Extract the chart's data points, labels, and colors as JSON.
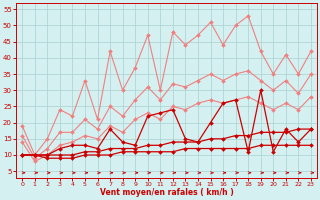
{
  "x": [
    0,
    1,
    2,
    3,
    4,
    5,
    6,
    7,
    8,
    9,
    10,
    11,
    12,
    13,
    14,
    15,
    16,
    17,
    18,
    19,
    20,
    21,
    22,
    23
  ],
  "lines": [
    {
      "label": "light_peak",
      "color": "#f08080",
      "lw": 0.8,
      "marker": "D",
      "ms": 2.0,
      "y": [
        19,
        10,
        15,
        24,
        22,
        33,
        21,
        42,
        30,
        37,
        47,
        30,
        48,
        44,
        47,
        51,
        44,
        50,
        53,
        42,
        35,
        41,
        35,
        42
      ]
    },
    {
      "label": "light_trend1",
      "color": "#f08080",
      "lw": 0.8,
      "marker": "D",
      "ms": 2.0,
      "y": [
        16,
        9,
        12,
        17,
        17,
        21,
        18,
        25,
        22,
        27,
        31,
        27,
        32,
        31,
        33,
        35,
        33,
        35,
        36,
        33,
        30,
        33,
        29,
        35
      ]
    },
    {
      "label": "light_trend2",
      "color": "#f08080",
      "lw": 0.8,
      "marker": "D",
      "ms": 2.0,
      "y": [
        14,
        8,
        10,
        13,
        14,
        16,
        15,
        19,
        17,
        21,
        23,
        21,
        25,
        24,
        26,
        27,
        26,
        27,
        28,
        26,
        24,
        26,
        24,
        28
      ]
    },
    {
      "label": "dark_peak",
      "color": "#cc0000",
      "lw": 0.9,
      "marker": "D",
      "ms": 2.0,
      "y": [
        10,
        10,
        10,
        12,
        13,
        13,
        12,
        18,
        14,
        13,
        22,
        23,
        24,
        15,
        14,
        20,
        26,
        27,
        11,
        30,
        11,
        18,
        14,
        18
      ]
    },
    {
      "label": "dark_trend1",
      "color": "#cc0000",
      "lw": 0.9,
      "marker": "D",
      "ms": 2.0,
      "y": [
        10,
        10,
        10,
        10,
        10,
        11,
        11,
        12,
        12,
        12,
        13,
        13,
        14,
        14,
        14,
        15,
        15,
        16,
        16,
        17,
        17,
        17,
        18,
        18
      ]
    },
    {
      "label": "dark_trend2",
      "color": "#cc0000",
      "lw": 0.9,
      "marker": "D",
      "ms": 2.0,
      "y": [
        10,
        10,
        9,
        9,
        9,
        10,
        10,
        10,
        11,
        11,
        11,
        11,
        11,
        12,
        12,
        12,
        12,
        12,
        12,
        13,
        13,
        13,
        13,
        13
      ]
    }
  ],
  "xlabel": "Vent moyen/en rafales ( km/h )",
  "ylim": [
    3,
    57
  ],
  "xlim": [
    -0.5,
    23.5
  ],
  "yticks": [
    5,
    10,
    15,
    20,
    25,
    30,
    35,
    40,
    45,
    50,
    55
  ],
  "xticks": [
    0,
    1,
    2,
    3,
    4,
    5,
    6,
    7,
    8,
    9,
    10,
    11,
    12,
    13,
    14,
    15,
    16,
    17,
    18,
    19,
    20,
    21,
    22,
    23
  ],
  "bg_color": "#d4f0f0",
  "grid_color": "#aacfcf",
  "xlabel_color": "#cc0000",
  "tick_color": "#cc0000",
  "arrow_color": "#cc0000",
  "spine_color": "#cc0000"
}
